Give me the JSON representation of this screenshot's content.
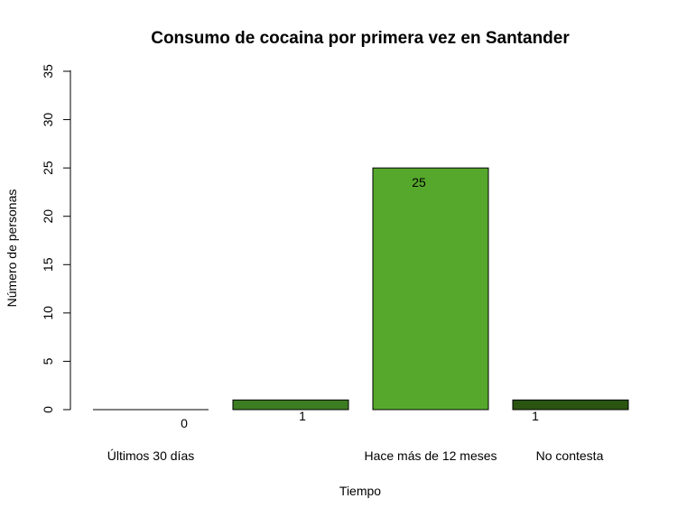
{
  "chart_data": {
    "type": "bar",
    "title": "Consumo de cocaina por primera vez en Santander",
    "xlabel": "Tiempo",
    "ylabel": "Número de personas",
    "ylim": [
      0,
      35
    ],
    "yticks": [
      "0",
      "5",
      "10",
      "15",
      "20",
      "25",
      "30",
      "35"
    ],
    "categories": [
      "Últimos 30 días",
      "",
      "Hace más de 12 meses",
      "No contesta"
    ],
    "values": [
      0,
      1,
      25,
      1
    ],
    "value_labels": [
      "0",
      "1",
      "25",
      "1"
    ],
    "colors": [
      "#5ea832",
      "#3d7d22",
      "#56a82c",
      "#2a5511"
    ],
    "grid": false,
    "legend": "none"
  }
}
